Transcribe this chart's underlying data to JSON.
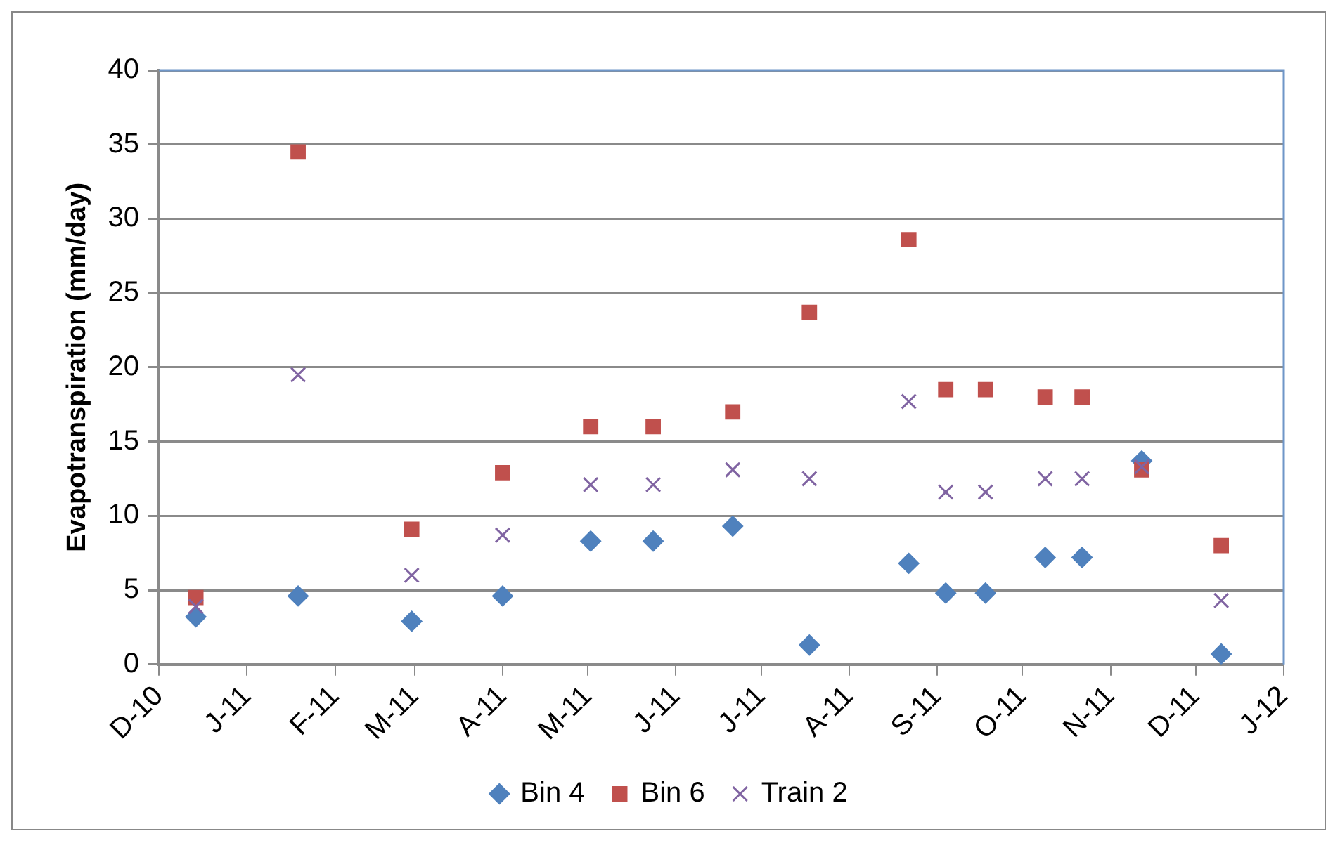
{
  "chart_data": {
    "type": "scatter",
    "ylabel": "Evapotranspiration (mm/day)",
    "x": [
      "2010-12-14",
      "2011-01-19",
      "2011-02-28",
      "2011-04-01",
      "2011-05-02",
      "2011-05-24",
      "2011-06-21",
      "2011-07-18",
      "2011-08-22",
      "2011-09-04",
      "2011-09-18",
      "2011-10-09",
      "2011-10-22",
      "2011-11-12",
      "2011-12-10"
    ],
    "series": [
      {
        "name": "Bin 4",
        "color": "#4f81bd",
        "marker": "diamond",
        "values": [
          3.2,
          4.6,
          2.9,
          4.6,
          8.3,
          8.3,
          9.3,
          1.3,
          6.8,
          4.8,
          4.8,
          7.2,
          7.2,
          13.7,
          0.7
        ]
      },
      {
        "name": "Bin 6",
        "color": "#c0504d",
        "marker": "square",
        "values": [
          4.5,
          34.5,
          9.1,
          12.9,
          16.0,
          16.0,
          17.0,
          23.7,
          28.6,
          18.5,
          18.5,
          18.0,
          18.0,
          13.1,
          8.0
        ]
      },
      {
        "name": "Train 2",
        "color": "#8064a2",
        "marker": "cross",
        "values": [
          3.9,
          19.5,
          6.0,
          8.7,
          12.1,
          12.1,
          13.1,
          12.5,
          17.7,
          11.6,
          11.6,
          12.5,
          12.5,
          13.3,
          4.3
        ]
      }
    ],
    "xlim": [
      "2010-12-01",
      "2012-01-01"
    ],
    "xticks": [
      {
        "value": "2010-12-01",
        "label": "D-10"
      },
      {
        "value": "2011-01-01",
        "label": "J-11"
      },
      {
        "value": "2011-02-01",
        "label": "F-11"
      },
      {
        "value": "2011-03-01",
        "label": "M-11"
      },
      {
        "value": "2011-04-01",
        "label": "A-11"
      },
      {
        "value": "2011-05-01",
        "label": "M-11"
      },
      {
        "value": "2011-06-01",
        "label": "J-11"
      },
      {
        "value": "2011-07-01",
        "label": "J-11"
      },
      {
        "value": "2011-08-01",
        "label": "A-11"
      },
      {
        "value": "2011-09-01",
        "label": "S-11"
      },
      {
        "value": "2011-10-01",
        "label": "O-11"
      },
      {
        "value": "2011-11-01",
        "label": "N-11"
      },
      {
        "value": "2011-12-01",
        "label": "D-11"
      },
      {
        "value": "2012-01-01",
        "label": "J-12"
      }
    ],
    "ylim": [
      0,
      40
    ],
    "yticks": [
      0,
      5,
      10,
      15,
      20,
      25,
      30,
      35,
      40
    ],
    "grid": "y",
    "legend": "bottom"
  }
}
